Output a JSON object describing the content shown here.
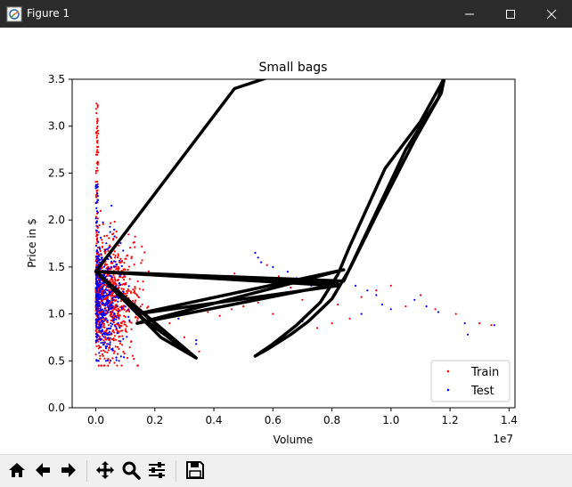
{
  "window": {
    "title": "Figure 1",
    "icon": "matplotlib-figure-icon",
    "controls": [
      "minimize-icon",
      "maximize-icon",
      "close-icon"
    ]
  },
  "toolbar": {
    "buttons": [
      {
        "name": "home-button",
        "icon": "home-icon"
      },
      {
        "name": "back-button",
        "icon": "arrow-left-icon"
      },
      {
        "name": "forward-button",
        "icon": "arrow-right-icon"
      },
      {
        "name": "pan-button",
        "icon": "move-icon"
      },
      {
        "name": "zoom-button",
        "icon": "magnifier-icon"
      },
      {
        "name": "configure-subplots-button",
        "icon": "sliders-icon"
      },
      {
        "name": "save-button",
        "icon": "floppy-icon"
      }
    ]
  },
  "chart_data": {
    "type": "scatter",
    "title": "Small bags",
    "xlabel": "Volume",
    "ylabel": "Price in $",
    "x_offset_label": "1e7",
    "xlim": [
      -0.08,
      1.42
    ],
    "ylim": [
      0.0,
      3.5
    ],
    "xticks": [
      "0.0",
      "0.2",
      "0.4",
      "0.6",
      "0.8",
      "1.0",
      "1.2",
      "1.4"
    ],
    "yticks": [
      "0.0",
      "0.5",
      "1.0",
      "1.5",
      "2.0",
      "2.5",
      "3.0",
      "3.5"
    ],
    "grid": false,
    "legend_position": "lower-right",
    "colors": {
      "train": "#ff0000",
      "test": "#0000ff",
      "fit": "#000000"
    },
    "series": [
      {
        "name": "Train",
        "color": "#ff0000",
        "marker": "dot",
        "x_range": [
          0.0,
          1.34
        ],
        "dense_cluster": {
          "x_range": [
            0.0,
            0.18
          ],
          "y_range": [
            0.45,
            3.25
          ]
        },
        "points": [
          [
            0.46,
            1.05
          ],
          [
            0.42,
            0.98
          ],
          [
            0.5,
            1.08
          ],
          [
            0.55,
            1.12
          ],
          [
            0.38,
            1.02
          ],
          [
            0.6,
            1.0
          ],
          [
            0.47,
            1.43
          ],
          [
            0.58,
            1.52
          ],
          [
            0.62,
            1.4
          ],
          [
            0.66,
            1.28
          ],
          [
            0.7,
            1.15
          ],
          [
            0.74,
            1.05
          ],
          [
            0.78,
            1.22
          ],
          [
            0.82,
            1.1
          ],
          [
            0.86,
            0.95
          ],
          [
            0.9,
            1.18
          ],
          [
            0.95,
            1.25
          ],
          [
            1.0,
            1.3
          ],
          [
            1.05,
            1.08
          ],
          [
            1.1,
            1.2
          ],
          [
            1.15,
            1.05
          ],
          [
            1.22,
            1.0
          ],
          [
            1.3,
            0.9
          ],
          [
            1.34,
            0.88
          ],
          [
            0.75,
            0.85
          ],
          [
            0.8,
            0.9
          ],
          [
            0.35,
            0.6
          ],
          [
            0.3,
            0.75
          ],
          [
            0.25,
            0.9
          ]
        ]
      },
      {
        "name": "Test",
        "color": "#0000ff",
        "marker": "dot",
        "x_range": [
          0.0,
          1.35
        ],
        "dense_cluster": {
          "x_range": [
            0.0,
            0.12
          ],
          "y_range": [
            0.5,
            2.45
          ]
        },
        "points": [
          [
            0.54,
            1.65
          ],
          [
            0.55,
            1.6
          ],
          [
            0.56,
            1.55
          ],
          [
            0.6,
            1.5
          ],
          [
            0.65,
            1.45
          ],
          [
            0.68,
            1.38
          ],
          [
            0.73,
            1.3
          ],
          [
            0.76,
            1.28
          ],
          [
            0.84,
            1.35
          ],
          [
            0.88,
            1.3
          ],
          [
            0.92,
            1.25
          ],
          [
            0.95,
            1.2
          ],
          [
            0.97,
            1.1
          ],
          [
            1.0,
            1.05
          ],
          [
            1.08,
            1.15
          ],
          [
            1.12,
            1.08
          ],
          [
            1.16,
            1.02
          ],
          [
            1.25,
            0.9
          ],
          [
            1.26,
            0.78
          ],
          [
            1.35,
            0.88
          ],
          [
            0.34,
            0.68
          ],
          [
            0.34,
            0.72
          ],
          [
            0.22,
            0.8
          ],
          [
            0.28,
            0.95
          ],
          [
            0.7,
            0.92
          ],
          [
            0.9,
            1.0
          ]
        ]
      }
    ],
    "fit_line": {
      "color": "#000000",
      "path": [
        [
          0.0,
          1.45
        ],
        [
          0.47,
          3.4
        ],
        [
          0.95,
          3.9
        ],
        [
          1.2,
          3.65
        ],
        [
          1.17,
          3.45
        ],
        [
          1.1,
          3.05
        ],
        [
          0.98,
          2.55
        ],
        [
          0.86,
          1.72
        ],
        [
          0.82,
          1.42
        ],
        [
          0.76,
          1.12
        ],
        [
          0.68,
          0.88
        ],
        [
          0.6,
          0.68
        ],
        [
          0.54,
          0.55
        ],
        [
          0.58,
          0.62
        ],
        [
          0.66,
          0.78
        ],
        [
          0.72,
          0.92
        ],
        [
          0.8,
          1.16
        ],
        [
          0.86,
          1.48
        ],
        [
          0.95,
          2.05
        ],
        [
          1.08,
          2.85
        ],
        [
          1.17,
          3.35
        ],
        [
          1.18,
          3.5
        ],
        [
          1.16,
          3.3
        ],
        [
          1.05,
          2.75
        ],
        [
          0.84,
          1.35
        ],
        [
          0.0,
          1.45
        ],
        [
          0.16,
          0.95
        ],
        [
          0.34,
          0.53
        ],
        [
          0.04,
          1.32
        ],
        [
          0.22,
          0.75
        ],
        [
          0.34,
          0.53
        ],
        [
          0.12,
          1.12
        ],
        [
          0.0,
          1.45
        ],
        [
          0.82,
          1.32
        ],
        [
          0.14,
          0.9
        ],
        [
          0.84,
          1.47
        ],
        [
          0.14,
          1.0
        ],
        [
          0.82,
          1.3
        ],
        [
          0.0,
          1.45
        ]
      ]
    },
    "legend": [
      {
        "label": "Train",
        "color": "#ff0000"
      },
      {
        "label": "Test",
        "color": "#0000ff"
      }
    ]
  }
}
